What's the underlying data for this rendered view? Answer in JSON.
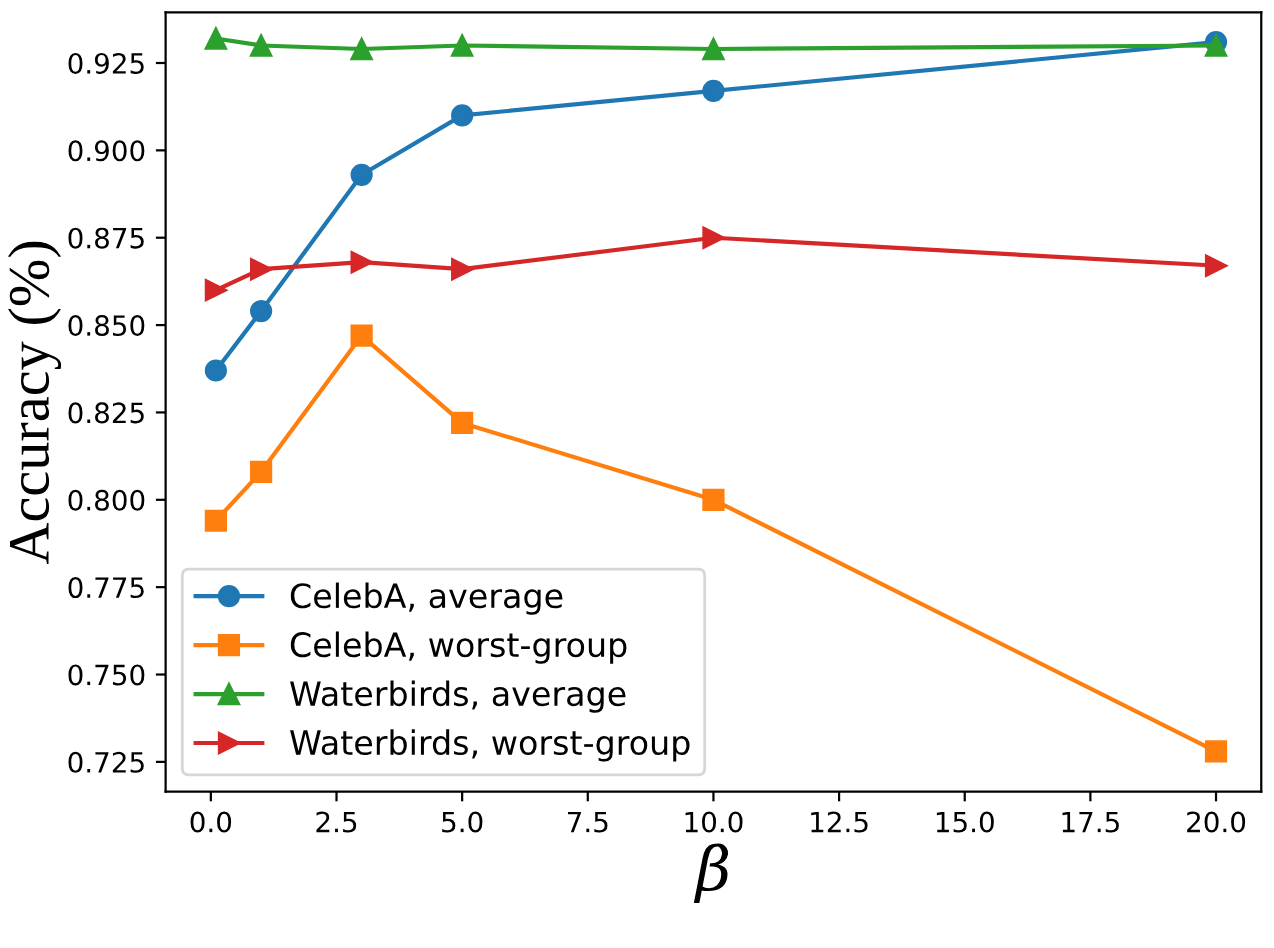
{
  "chart_data": {
    "type": "line",
    "xlabel": "β",
    "ylabel": "Accuracy (%)",
    "x": [
      0.1,
      1,
      3,
      5,
      10,
      20
    ],
    "series": [
      {
        "name": "CelebA, average",
        "color": "#1f77b4",
        "marker": "circle",
        "values": [
          0.837,
          0.854,
          0.893,
          0.91,
          0.917,
          0.931
        ]
      },
      {
        "name": "CelebA, worst-group",
        "color": "#ff7f0e",
        "marker": "square",
        "values": [
          0.794,
          0.808,
          0.847,
          0.822,
          0.8,
          0.728
        ]
      },
      {
        "name": "Waterbirds, average",
        "color": "#2ca02c",
        "marker": "triangle",
        "values": [
          0.932,
          0.93,
          0.929,
          0.93,
          0.929,
          0.93
        ]
      },
      {
        "name": "Waterbirds, worst-group",
        "color": "#d62728",
        "marker": "triangle_right",
        "values": [
          0.86,
          0.866,
          0.868,
          0.866,
          0.875,
          0.867
        ]
      }
    ],
    "xlim": [
      -0.9,
      20.9
    ],
    "ylim": [
      0.7165,
      0.9395
    ],
    "xticks": [
      {
        "value": 0,
        "label": "0.0"
      },
      {
        "value": 2.5,
        "label": "2.5"
      },
      {
        "value": 5,
        "label": "5.0"
      },
      {
        "value": 7.5,
        "label": "7.5"
      },
      {
        "value": 10,
        "label": "10.0"
      },
      {
        "value": 12.5,
        "label": "12.5"
      },
      {
        "value": 15,
        "label": "15.0"
      },
      {
        "value": 17.5,
        "label": "17.5"
      },
      {
        "value": 20,
        "label": "20.0"
      }
    ],
    "yticks": [
      {
        "value": 0.725,
        "label": "0.725"
      },
      {
        "value": 0.75,
        "label": "0.750"
      },
      {
        "value": 0.775,
        "label": "0.775"
      },
      {
        "value": 0.8,
        "label": "0.800"
      },
      {
        "value": 0.825,
        "label": "0.825"
      },
      {
        "value": 0.85,
        "label": "0.850"
      },
      {
        "value": 0.875,
        "label": "0.875"
      },
      {
        "value": 0.9,
        "label": "0.900"
      },
      {
        "value": 0.925,
        "label": "0.925"
      }
    ],
    "legend": "bottom left",
    "grid": false,
    "line_style": "solid"
  }
}
